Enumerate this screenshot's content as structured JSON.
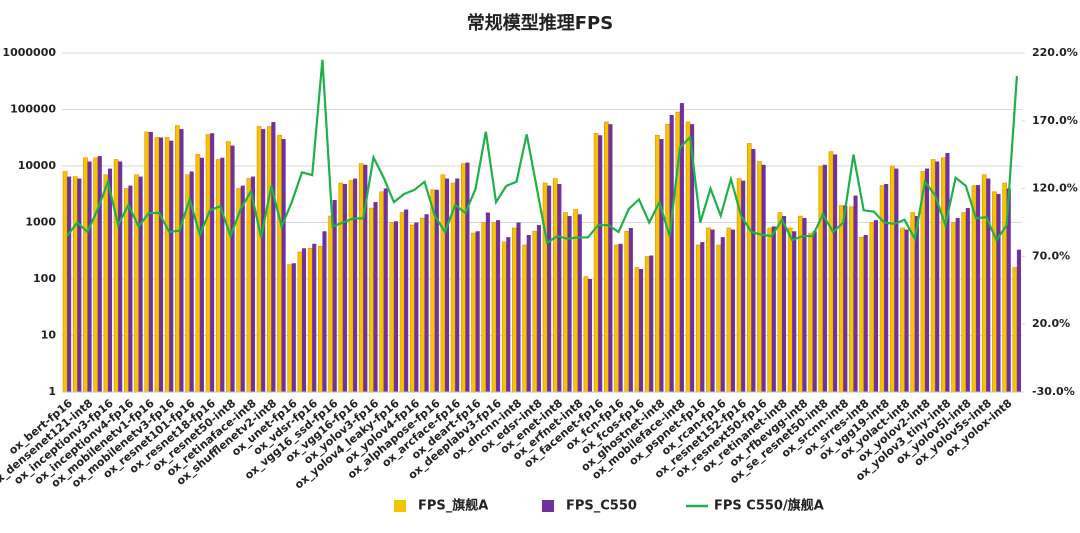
{
  "chart_data": {
    "type": "bar",
    "title": "常规模型推理FPS",
    "categories": [
      "ox_bert-fp16",
      null,
      "ox_densenet121-int8",
      null,
      "ox_inceptionv3-fp16",
      null,
      "ox_inceptionv4-fp16",
      null,
      "ox_mobilenetv1-fp16",
      null,
      "ox_mobilenetv3-fp16",
      null,
      "ox_resnet101-fp16",
      null,
      "ox_resnet18-fp16",
      null,
      "ox_resnet50-int8",
      null,
      "ox_retinaface-int8",
      null,
      "ox_shufflenetv2-int8",
      null,
      "ox_unet-fp16",
      null,
      "ox_vdsr-fp16",
      null,
      "ox_vgg16_ssd-fp16",
      null,
      "ox_vgg16-fp16",
      null,
      "ox_yolov3-fp16",
      null,
      "ox_yolov4_leaky-fp16",
      null,
      "ox_yolov4-fp16",
      null,
      "ox_alphapose-fp16",
      null,
      "ox_arcface-fp16",
      null,
      "ox_deart-fp16",
      null,
      "ox_deeplabv3-fp16",
      null,
      "ox_dncnn-int8",
      null,
      "ox_edsr-int8",
      null,
      "ox_enet-int8",
      null,
      "ox_erfnet-int8",
      null,
      "ox_facenet-fp16",
      null,
      "ox_fcn-fp16",
      null,
      "ox_fcos-fp16",
      null,
      "ox_ghostnet-int8",
      null,
      "ox_mobileface-int8",
      null,
      "ox_pspnet-fp16",
      null,
      "ox_rcan-fp16",
      null,
      "ox_resnet152-fp16",
      null,
      "ox_resnext50-fp16",
      null,
      "ox_retinanet-int8",
      null,
      "ox_rfbevgg-int8",
      null,
      "ox_se_resnet50-int8",
      null,
      "ox_srcnn-int8",
      null,
      "ox_srres-int8",
      null,
      "ox_vgg19-int8",
      null,
      "ox_yolact-int8",
      null,
      "ox_yolov2-int8",
      null,
      "ox_yolov3_tiny-int8",
      null,
      "ox_yolov5l-int8",
      null,
      "ox_yolov5s-int8",
      null,
      "ox_yolox-int8",
      null
    ],
    "series": [
      {
        "name": "FPS_旗舰A",
        "color": "#f5c400",
        "values": [
          8000,
          6500,
          14000,
          14000,
          7000,
          13000,
          4000,
          7000,
          40000,
          32000,
          32000,
          52000,
          7000,
          16000,
          36000,
          13000,
          27000,
          4000,
          6000,
          50000,
          50000,
          35000,
          180,
          300,
          350,
          380,
          1300,
          5000,
          5500,
          11000,
          1800,
          3500,
          1000,
          1500,
          900,
          1200,
          3800,
          7000,
          5000,
          11000,
          650,
          1000,
          1000,
          450,
          800,
          400,
          700,
          5000,
          6000,
          1500,
          1700,
          110,
          38000,
          60000,
          400,
          700,
          160,
          250,
          35000,
          55000,
          90000,
          60000,
          400,
          800,
          400,
          800,
          6000,
          25000,
          12000,
          800,
          1500,
          800,
          1300,
          650,
          10000,
          18000,
          2000,
          1900,
          550,
          1000,
          4500,
          10000,
          800,
          1500,
          8000,
          13000,
          14000,
          1000,
          1500,
          4500,
          7000,
          3500,
          5000,
          160
        ]
      },
      {
        "name": "FPS_C550",
        "color": "#7030a0",
        "values": [
          6500,
          6000,
          12000,
          15000,
          9000,
          12000,
          4500,
          6500,
          40000,
          32000,
          28000,
          45000,
          8000,
          14000,
          38000,
          14000,
          23000,
          4500,
          6500,
          45000,
          60000,
          30000,
          190,
          350,
          420,
          700,
          2500,
          4800,
          6000,
          10500,
          2300,
          4000,
          1050,
          1700,
          1000,
          1400,
          3800,
          6000,
          6000,
          11500,
          700,
          1500,
          1100,
          550,
          1000,
          600,
          900,
          4500,
          4800,
          1300,
          1400,
          100,
          35000,
          55000,
          420,
          800,
          150,
          260,
          30000,
          80000,
          130000,
          55000,
          450,
          750,
          550,
          750,
          5500,
          20000,
          10500,
          850,
          1300,
          700,
          1200,
          700,
          10500,
          16000,
          2000,
          3000,
          600,
          1100,
          4800,
          9000,
          750,
          1300,
          9000,
          12000,
          17000,
          1200,
          1800,
          4600,
          6000,
          3200,
          4000,
          330
        ]
      },
      {
        "name": "FPS C550/旗舰A",
        "color": "#1fb04a",
        "type": "line",
        "axis": "y2",
        "values": [
          85,
          95,
          88,
          105,
          125,
          93,
          108,
          92,
          102,
          102,
          88,
          89,
          112,
          86,
          104,
          107,
          85,
          105,
          118,
          84,
          122,
          92,
          110,
          132,
          130,
          215,
          92,
          95,
          98,
          98,
          143,
          128,
          110,
          116,
          119,
          125,
          100,
          88,
          108,
          102,
          120,
          162,
          110,
          122,
          125,
          160,
          120,
          80,
          85,
          83,
          84,
          84,
          93,
          93,
          88,
          105,
          112,
          95,
          110,
          85,
          150,
          158,
          95,
          120,
          100,
          127,
          100,
          88,
          86,
          85,
          97,
          82,
          85,
          85,
          101,
          88,
          95,
          145,
          104,
          103,
          95,
          94,
          97,
          83,
          125,
          115,
          93,
          128,
          122,
          98,
          99,
          82,
          93,
          203
        ]
      }
    ],
    "yscale": "log",
    "ylim": [
      1,
      1000000
    ],
    "yticks": [
      1,
      10,
      100,
      1000,
      10000,
      100000,
      1000000
    ],
    "y2lim": [
      -30,
      220
    ],
    "y2ticks": [
      {
        "value": -30,
        "label": "-30.0%"
      },
      {
        "value": 20,
        "label": "20.0%"
      },
      {
        "value": 70,
        "label": "70.0%"
      },
      {
        "value": 120,
        "label": "120.0%"
      },
      {
        "value": 170,
        "label": "170.0%"
      },
      {
        "value": 220,
        "label": "220.0%"
      }
    ],
    "grid": true,
    "legend": "bottom"
  }
}
